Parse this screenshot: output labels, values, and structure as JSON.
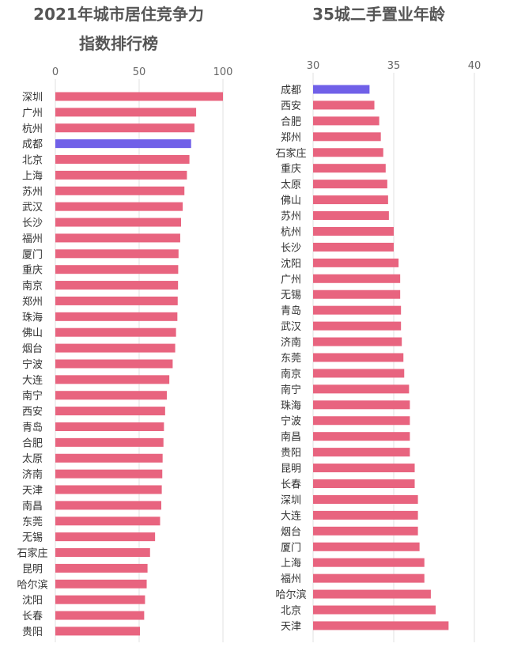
{
  "chart_data": [
    {
      "type": "bar",
      "orientation": "horizontal",
      "title_lines": [
        "2021年城市居住竞争力",
        "指数排行榜"
      ],
      "xlim": [
        0,
        100
      ],
      "ticks": [
        0,
        50,
        100
      ],
      "grid": true,
      "colors": {
        "bar": "#E8647F",
        "highlight": "#7060E8"
      },
      "highlight": "成都",
      "categories": [
        "深圳",
        "广州",
        "杭州",
        "成都",
        "北京",
        "上海",
        "苏州",
        "武汉",
        "长沙",
        "福州",
        "厦门",
        "重庆",
        "南京",
        "郑州",
        "珠海",
        "佛山",
        "烟台",
        "宁波",
        "大连",
        "南宁",
        "西安",
        "青岛",
        "合肥",
        "太原",
        "济南",
        "天津",
        "南昌",
        "东莞",
        "无锡",
        "石家庄",
        "昆明",
        "哈尔滨",
        "沈阳",
        "长春",
        "贵阳"
      ],
      "values": [
        100,
        84,
        83,
        81,
        80,
        78.5,
        77,
        76,
        75,
        74.5,
        73.5,
        73.3,
        73.2,
        73,
        72.8,
        72,
        71.5,
        70,
        68,
        66.5,
        65.5,
        64.8,
        64.5,
        64,
        63.8,
        63.5,
        63.2,
        62.5,
        59.5,
        56.5,
        55,
        54.5,
        53.5,
        53,
        50.5
      ]
    },
    {
      "type": "bar",
      "orientation": "horizontal",
      "title_lines": [
        "35城二手置业年龄"
      ],
      "xlim": [
        30,
        40
      ],
      "ticks": [
        30,
        35,
        40
      ],
      "grid": true,
      "colors": {
        "bar": "#E8647F",
        "highlight": "#7060E8"
      },
      "highlight": "成都",
      "categories": [
        "成都",
        "西安",
        "合肥",
        "郑州",
        "石家庄",
        "重庆",
        "太原",
        "佛山",
        "苏州",
        "杭州",
        "长沙",
        "沈阳",
        "广州",
        "无锡",
        "青岛",
        "武汉",
        "济南",
        "东莞",
        "南京",
        "南宁",
        "珠海",
        "宁波",
        "南昌",
        "贵阳",
        "昆明",
        "长春",
        "深圳",
        "大连",
        "烟台",
        "厦门",
        "上海",
        "福州",
        "哈尔滨",
        "北京",
        "天津"
      ],
      "values": [
        33.5,
        33.8,
        34.1,
        34.2,
        34.35,
        34.5,
        34.6,
        34.65,
        34.7,
        35.0,
        35.0,
        35.3,
        35.4,
        35.4,
        35.45,
        35.45,
        35.5,
        35.6,
        35.65,
        35.95,
        36.0,
        36.0,
        36.0,
        36.0,
        36.3,
        36.3,
        36.5,
        36.5,
        36.5,
        36.6,
        36.9,
        36.9,
        37.3,
        37.6,
        38.4
      ]
    }
  ]
}
